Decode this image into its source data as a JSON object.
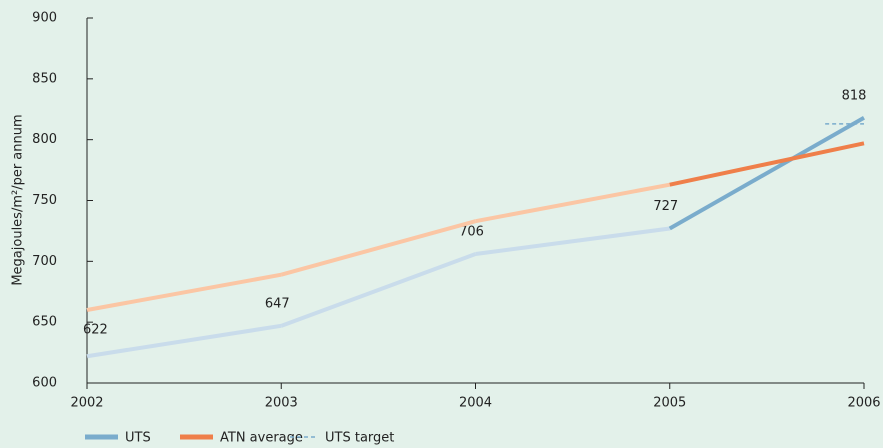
{
  "chart_data": {
    "type": "line",
    "y_label": "Megajoules/m²/per annum",
    "x": [
      2002,
      2003,
      2004,
      2005,
      2006
    ],
    "xlim": [
      2002,
      2006
    ],
    "xticks": [
      2002,
      2003,
      2004,
      2005,
      2006
    ],
    "ylim": [
      600,
      900
    ],
    "yticks": [
      600,
      650,
      700,
      750,
      800,
      850,
      900
    ],
    "series": [
      {
        "name": "UTS",
        "color": "#7aaccc",
        "segment_colors": [
          "#c9dceb",
          "#c9dceb",
          "#c9dceb",
          "#7aaccc"
        ],
        "values": [
          622,
          647,
          706,
          727,
          818
        ],
        "show_labels": true
      },
      {
        "name": "ATN average",
        "color": "#ef7f4a",
        "segment_colors": [
          "#fbc6a4",
          "#fbc6a4",
          "#fbc6a4",
          "#ef7f4a"
        ],
        "values": [
          660,
          689,
          733,
          763,
          797
        ]
      },
      {
        "name": "UTS target",
        "color": "#7aaccc",
        "dashed": true,
        "x": [
          2005.8,
          2006
        ],
        "values": [
          813,
          813
        ]
      }
    ]
  }
}
